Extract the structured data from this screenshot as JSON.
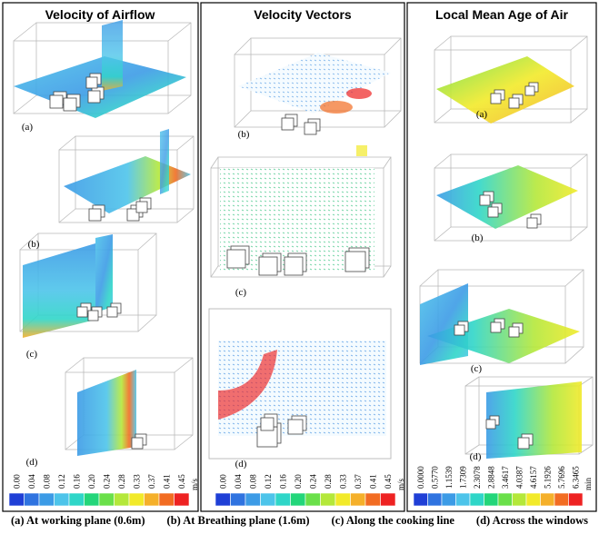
{
  "panels": [
    {
      "title": "Velocity of Airflow",
      "labels": [
        "(a)",
        "(b)",
        "(c)",
        "(d)"
      ],
      "legend": {
        "ticks": [
          "0.00",
          "0.04",
          "0.08",
          "0.12",
          "0.16",
          "0.20",
          "0.24",
          "0.28",
          "0.33",
          "0.37",
          "0.41",
          "0.45"
        ],
        "unit": "m/s",
        "colors": [
          "#1f3fd6",
          "#2f73e0",
          "#3c9be6",
          "#4dc4ea",
          "#2fd6c8",
          "#23d67a",
          "#6ae04a",
          "#b4e83a",
          "#f2ea2a",
          "#f5b02a",
          "#f26c22",
          "#ee2222"
        ]
      }
    },
    {
      "title": "Velocity  Vectors",
      "labels": [
        "(b)",
        "(c)",
        "(d)"
      ],
      "legend": {
        "ticks": [
          "0.00",
          "0.04",
          "0.08",
          "0.12",
          "0.16",
          "0.20",
          "0.24",
          "0.28",
          "0.33",
          "0.37",
          "0.41",
          "0.45"
        ],
        "unit": "m/s",
        "colors": [
          "#1f3fd6",
          "#2f73e0",
          "#3c9be6",
          "#4dc4ea",
          "#2fd6c8",
          "#23d67a",
          "#6ae04a",
          "#b4e83a",
          "#f2ea2a",
          "#f5b02a",
          "#f26c22",
          "#ee2222"
        ]
      }
    },
    {
      "title": "Local Mean Age of Air",
      "labels": [
        "(a)",
        "(b)",
        "(c)",
        "(d)"
      ],
      "legend": {
        "ticks": [
          "0.0000",
          "0.5770",
          "1.1539",
          "1.7309",
          "2.3078",
          "2.8848",
          "3.4617",
          "4.0387",
          "4.6157",
          "5.1926",
          "5.7696",
          "6.3465"
        ],
        "unit": "min",
        "colors": [
          "#1f3fd6",
          "#2f73e0",
          "#3c9be6",
          "#4dc4ea",
          "#2fd6c8",
          "#23d67a",
          "#6ae04a",
          "#b4e83a",
          "#f2ea2a",
          "#f5b02a",
          "#f26c22",
          "#ee2222"
        ]
      }
    }
  ],
  "caption": [
    "(a) At working plane (0.6m)",
    "(b) At Breathing plane (1.6m)",
    "(c) Along the cooking line",
    "(d) Across the windows"
  ]
}
